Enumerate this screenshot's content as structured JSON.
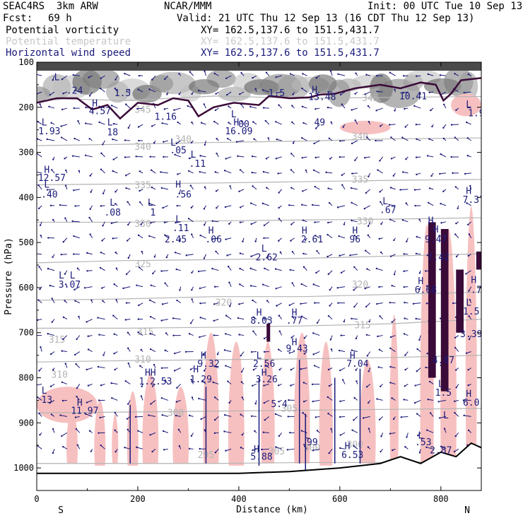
{
  "header": {
    "model": "SEAC4RS  3km ARW",
    "org": "NCAR/MMM",
    "init": "Init: 00 UTC Tue 10 Sep 13",
    "fcst_label": "Fcst:",
    "fcst_value": "69 h",
    "valid": "Valid: 21 UTC Thu 12 Sep 13 (16 CDT Thu 12 Sep 13)"
  },
  "legend": [
    {
      "name": "Potential vorticity",
      "xy": "XY= 162.5,137.6 to 151.5,431.7",
      "color": "#000000"
    },
    {
      "name": "Potential temperature",
      "xy": "XY= 162.5,137.6 to 151.5,431.7",
      "color": "#c8c8c8"
    },
    {
      "name": "Horizontal wind speed",
      "xy": "XY= 162.5,137.6 to 151.5,431.7",
      "color": "#1a1a7a"
    }
  ],
  "colors": {
    "pv_fill": "#f7c0c0",
    "theta": "#b4b4b4",
    "wind": "#1a1a7a",
    "pv_line": "#3a0a38",
    "terrain": "#000000",
    "strat_dark": "#555555"
  },
  "chart_data": {
    "type": "cross-section",
    "xlabel": "Distance (km)",
    "ylabel": "Pressure (hPa)",
    "xlim": [
      0,
      880
    ],
    "ylim": [
      1050,
      100
    ],
    "x_ticks": [
      0,
      200,
      400,
      600,
      800
    ],
    "y_ticks": [
      100,
      200,
      300,
      400,
      500,
      600,
      700,
      800,
      900,
      1000
    ],
    "endpoint_labels": {
      "left": "S",
      "right": "N"
    },
    "theta_contours": [
      {
        "label": "345",
        "p": [
          180,
          185,
          175,
          180,
          178,
          176
        ]
      },
      {
        "label": "340",
        "p": [
          285,
          282,
          278,
          275,
          270,
          268
        ]
      },
      {
        "label": "335",
        "p": [
          372,
          370,
          368,
          365,
          362,
          360
        ]
      },
      {
        "label": "330",
        "p": [
          455,
          455,
          452,
          450,
          448,
          445
        ]
      },
      {
        "label": "325",
        "p": [
          545,
          540,
          538,
          535,
          530,
          525
        ]
      },
      {
        "label": "320",
        "p": [
          628,
          625,
          620,
          620,
          615,
          610
        ]
      },
      {
        "label": "315",
        "p": [
          690,
          690,
          688,
          685,
          680,
          670
        ]
      },
      {
        "label": "310",
        "p": [
          765,
          762,
          760,
          758,
          755,
          750
        ]
      },
      {
        "label": "305",
        "p": [
          878,
          876,
          874,
          872,
          870,
          868
        ]
      },
      {
        "label": "300",
        "p": [
          990,
          990,
          990,
          988,
          988,
          985
        ]
      }
    ],
    "theta_label_positions": [
      {
        "text": "345",
        "x": 210,
        "p": 212
      },
      {
        "text": "340",
        "x": 210,
        "p": 294
      },
      {
        "text": "340",
        "x": 290,
        "p": 278
      },
      {
        "text": "340",
        "x": 640,
        "p": 272
      },
      {
        "text": "335",
        "x": 210,
        "p": 380
      },
      {
        "text": "335",
        "x": 640,
        "p": 367
      },
      {
        "text": "330",
        "x": 210,
        "p": 465
      },
      {
        "text": "330",
        "x": 650,
        "p": 460
      },
      {
        "text": "325",
        "x": 210,
        "p": 555
      },
      {
        "text": "320",
        "x": 370,
        "p": 640
      },
      {
        "text": "320",
        "x": 640,
        "p": 600
      },
      {
        "text": "315",
        "x": 215,
        "p": 705
      },
      {
        "text": "315",
        "x": 645,
        "p": 690
      },
      {
        "text": "315",
        "x": 40,
        "p": 722
      },
      {
        "text": "310",
        "x": 210,
        "p": 766
      },
      {
        "text": "310",
        "x": 45,
        "p": 800
      },
      {
        "text": "305",
        "x": 500,
        "p": 875
      },
      {
        "text": "300",
        "x": 275,
        "p": 885
      },
      {
        "text": "300",
        "x": 545,
        "p": 962
      },
      {
        "text": "300",
        "x": 630,
        "p": 955
      },
      {
        "text": "345",
        "x": 660,
        "p": 186
      },
      {
        "text": "295",
        "x": 335,
        "p": 978
      },
      {
        "text": "305",
        "x": 475,
        "p": 970
      }
    ],
    "extrema_labels": [
      {
        "text": "L",
        "x": 40,
        "p": 140
      },
      {
        "text": ".24",
        "x": 75,
        "p": 170
      },
      {
        "text": "H",
        "x": 115,
        "p": 198
      },
      {
        "text": "4.57",
        "x": 125,
        "p": 215
      },
      {
        "text": "1.5",
        "x": 170,
        "p": 175
      },
      {
        "text": "1.16",
        "x": 255,
        "p": 228
      },
      {
        "text": "L",
        "x": 15,
        "p": 240
      },
      {
        "text": "1.93",
        "x": 25,
        "p": 260
      },
      {
        "text": "L",
        "x": 145,
        "p": 240
      },
      {
        "text": "18",
        "x": 150,
        "p": 262
      },
      {
        "text": "L",
        "x": 270,
        "p": 285
      },
      {
        "text": ".05",
        "x": 280,
        "p": 302
      },
      {
        "text": "L",
        "x": 310,
        "p": 312
      },
      {
        "text": ".11",
        "x": 318,
        "p": 332
      },
      {
        "text": "L",
        "x": 390,
        "p": 222
      },
      {
        "text": "H",
        "x": 395,
        "p": 240
      },
      {
        "text": "00",
        "x": 410,
        "p": 244
      },
      {
        "text": "16.09",
        "x": 400,
        "p": 260
      },
      {
        "text": "1.5",
        "x": 475,
        "p": 175
      },
      {
        "text": "H",
        "x": 550,
        "p": 168
      },
      {
        "text": "13.48",
        "x": 565,
        "p": 184
      },
      {
        "text": "10.41",
        "x": 745,
        "p": 182
      },
      {
        "text": "L",
        "x": 855,
        "p": 200
      },
      {
        "text": "1.9",
        "x": 870,
        "p": 220
      },
      {
        "text": "49",
        "x": 560,
        "p": 240
      },
      {
        "text": "H",
        "x": 20,
        "p": 345
      },
      {
        "text": "12.57",
        "x": 30,
        "p": 363
      },
      {
        "text": "L",
        "x": 20,
        "p": 378
      },
      {
        "text": ".40",
        "x": 25,
        "p": 400
      },
      {
        "text": "H",
        "x": 280,
        "p": 378
      },
      {
        "text": ".56",
        "x": 290,
        "p": 400
      },
      {
        "text": "L",
        "x": 150,
        "p": 418
      },
      {
        "text": ".08",
        "x": 150,
        "p": 440
      },
      {
        "text": "L",
        "x": 225,
        "p": 418
      },
      {
        "text": "1",
        "x": 230,
        "p": 440
      },
      {
        "text": "L",
        "x": 280,
        "p": 455
      },
      {
        "text": ".11",
        "x": 285,
        "p": 475
      },
      {
        "text": "2.45",
        "x": 275,
        "p": 500
      },
      {
        "text": "H",
        "x": 345,
        "p": 480
      },
      {
        "text": ".06",
        "x": 350,
        "p": 500
      },
      {
        "text": "H",
        "x": 530,
        "p": 480
      },
      {
        "text": "2.61",
        "x": 545,
        "p": 500
      },
      {
        "text": "H",
        "x": 630,
        "p": 480
      },
      {
        "text": "96",
        "x": 630,
        "p": 500
      },
      {
        "text": "L",
        "x": 450,
        "p": 520
      },
      {
        "text": "2.62",
        "x": 455,
        "p": 540
      },
      {
        "text": "L",
        "x": 690,
        "p": 415
      },
      {
        "text": ".67",
        "x": 695,
        "p": 435
      },
      {
        "text": "H",
        "x": 855,
        "p": 392
      },
      {
        "text": "7.37",
        "x": 865,
        "p": 412
      },
      {
        "text": "H",
        "x": 780,
        "p": 458
      },
      {
        "text": "H",
        "x": 790,
        "p": 478
      },
      {
        "text": "9.47",
        "x": 790,
        "p": 500
      },
      {
        "text": "7.42",
        "x": 795,
        "p": 540
      },
      {
        "text": "L L",
        "x": 60,
        "p": 580
      },
      {
        "text": "3.07",
        "x": 65,
        "p": 600
      },
      {
        "text": "H",
        "x": 760,
        "p": 592
      },
      {
        "text": "6.68",
        "x": 770,
        "p": 612
      },
      {
        "text": "H",
        "x": 865,
        "p": 590
      },
      {
        "text": ".7",
        "x": 870,
        "p": 612
      },
      {
        "text": "L",
        "x": 855,
        "p": 640
      },
      {
        "text": "1.5",
        "x": 860,
        "p": 660
      },
      {
        "text": "H",
        "x": 440,
        "p": 662
      },
      {
        "text": "8.03",
        "x": 445,
        "p": 680
      },
      {
        "text": "H",
        "x": 510,
        "p": 662
      },
      {
        "text": ".77",
        "x": 510,
        "p": 680
      },
      {
        "text": "3.39",
        "x": 860,
        "p": 710
      },
      {
        "text": "H",
        "x": 510,
        "p": 728
      },
      {
        "text": "9.43",
        "x": 515,
        "p": 742
      },
      {
        "text": "H",
        "x": 330,
        "p": 758
      },
      {
        "text": "9.32",
        "x": 340,
        "p": 776
      },
      {
        "text": "L",
        "x": 440,
        "p": 758
      },
      {
        "text": "2.56",
        "x": 450,
        "p": 776
      },
      {
        "text": "H",
        "x": 625,
        "p": 758
      },
      {
        "text": "7.04",
        "x": 635,
        "p": 776
      },
      {
        "text": "4.87",
        "x": 805,
        "p": 768
      },
      {
        "text": "H",
        "x": 315,
        "p": 788
      },
      {
        "text": "1.29",
        "x": 325,
        "p": 810
      },
      {
        "text": "HH",
        "x": 225,
        "p": 795
      },
      {
        "text": "1.2.53",
        "x": 235,
        "p": 815
      },
      {
        "text": "H",
        "x": 450,
        "p": 795
      },
      {
        "text": "3.26",
        "x": 455,
        "p": 810
      },
      {
        "text": "L",
        "x": 15,
        "p": 835
      },
      {
        "text": "13",
        "x": 20,
        "p": 856
      },
      {
        "text": "H",
        "x": 85,
        "p": 862
      },
      {
        "text": "11.97",
        "x": 95,
        "p": 880
      },
      {
        "text": "L",
        "x": 800,
        "p": 820
      },
      {
        "text": "1.5",
        "x": 805,
        "p": 840
      },
      {
        "text": "H",
        "x": 855,
        "p": 842
      },
      {
        "text": "6.0",
        "x": 860,
        "p": 862
      },
      {
        "text": "L",
        "x": 535,
        "p": 935
      },
      {
        "text": ".99",
        "x": 540,
        "p": 950
      },
      {
        "text": "L",
        "x": 760,
        "p": 935
      },
      {
        "text": ".53",
        "x": 765,
        "p": 950
      },
      {
        "text": "H",
        "x": 615,
        "p": 958
      },
      {
        "text": "6.53",
        "x": 625,
        "p": 978
      },
      {
        "text": "H",
        "x": 435,
        "p": 965
      },
      {
        "text": "5.88",
        "x": 445,
        "p": 982
      },
      {
        "text": "2.87",
        "x": 800,
        "p": 968
      },
      {
        "text": "L",
        "x": 810,
        "p": 890
      },
      {
        "text": "5.4",
        "x": 480,
        "p": 865
      }
    ]
  }
}
